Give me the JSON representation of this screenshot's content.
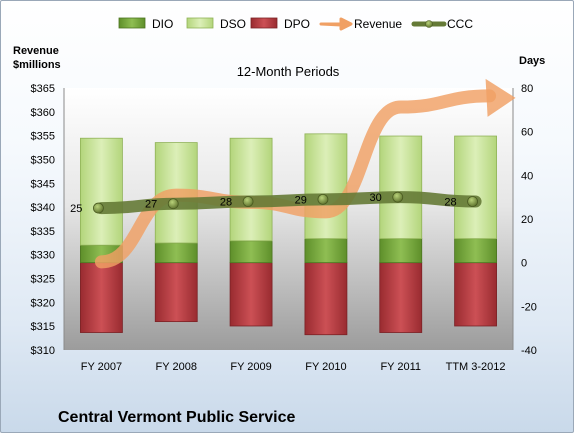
{
  "chart_data": {
    "type": "bar",
    "title": "12-Month Periods",
    "company": "Central Vermont Public Service",
    "categories": [
      "FY 2007",
      "FY 2008",
      "FY 2009",
      "FY 2010",
      "FY 2011",
      "TTM 3-2012"
    ],
    "left_axis": {
      "label_line1": "Revenue",
      "label_line2": "$millions",
      "range": [
        310,
        365
      ],
      "ticks": [
        "$365",
        "$360",
        "$355",
        "$350",
        "$345",
        "$340",
        "$335",
        "$330",
        "$325",
        "$320",
        "$315",
        "$310"
      ]
    },
    "right_axis": {
      "label": "Days",
      "range": [
        -40,
        80
      ],
      "ticks": [
        "80",
        "60",
        "40",
        "20",
        "0",
        "-20",
        "-40"
      ]
    },
    "series": [
      {
        "name": "DIO",
        "kind": "stacked-bar",
        "axis": "days",
        "color": "#72a33a",
        "values": [
          8,
          9,
          10,
          11,
          11,
          11
        ]
      },
      {
        "name": "DSO",
        "kind": "stacked-bar",
        "axis": "days",
        "color": "#c8e29a",
        "values": [
          49,
          46,
          47,
          48,
          47,
          47
        ]
      },
      {
        "name": "DPO",
        "kind": "negative-bar",
        "axis": "days",
        "color": "#b8393d",
        "values": [
          -32,
          -27,
          -29,
          -33,
          -32,
          -29
        ]
      },
      {
        "name": "Revenue",
        "kind": "arrow-line",
        "axis": "revenue",
        "color": "#f0a064",
        "values": [
          328.5,
          342.5,
          341,
          339,
          361,
          362.5
        ]
      },
      {
        "name": "CCC",
        "kind": "line",
        "axis": "days",
        "color": "#657a36",
        "values": [
          25,
          27,
          28,
          29,
          30,
          28
        ],
        "labels": [
          "25",
          "27",
          "28",
          "29",
          "30",
          "28"
        ]
      }
    ],
    "legend": "top",
    "grid": false
  }
}
